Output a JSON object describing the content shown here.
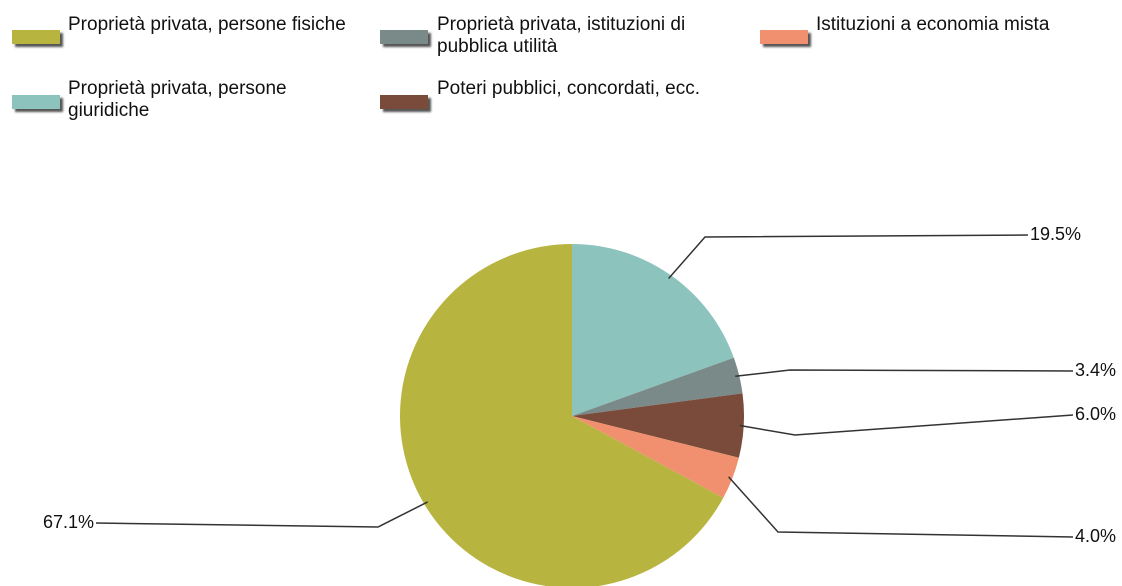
{
  "chart_data": {
    "type": "pie",
    "categories": [
      "Proprietà privata, persone giuridiche",
      "Proprietà privata, istituzioni di pubblica utilità",
      "Poteri pubblici, concordati, ecc.",
      "Istituzioni a economia mista",
      "Proprietà privata, persone fisiche"
    ],
    "values": [
      19.5,
      3.4,
      6.0,
      4.0,
      67.1
    ],
    "value_labels": [
      "19.5%",
      "3.4%",
      "6.0%",
      "4.0%",
      "67.1%"
    ],
    "colors": [
      "#8dc3bd",
      "#7a8a88",
      "#7a4a3a",
      "#f0906e",
      "#b8b440"
    ]
  }
}
